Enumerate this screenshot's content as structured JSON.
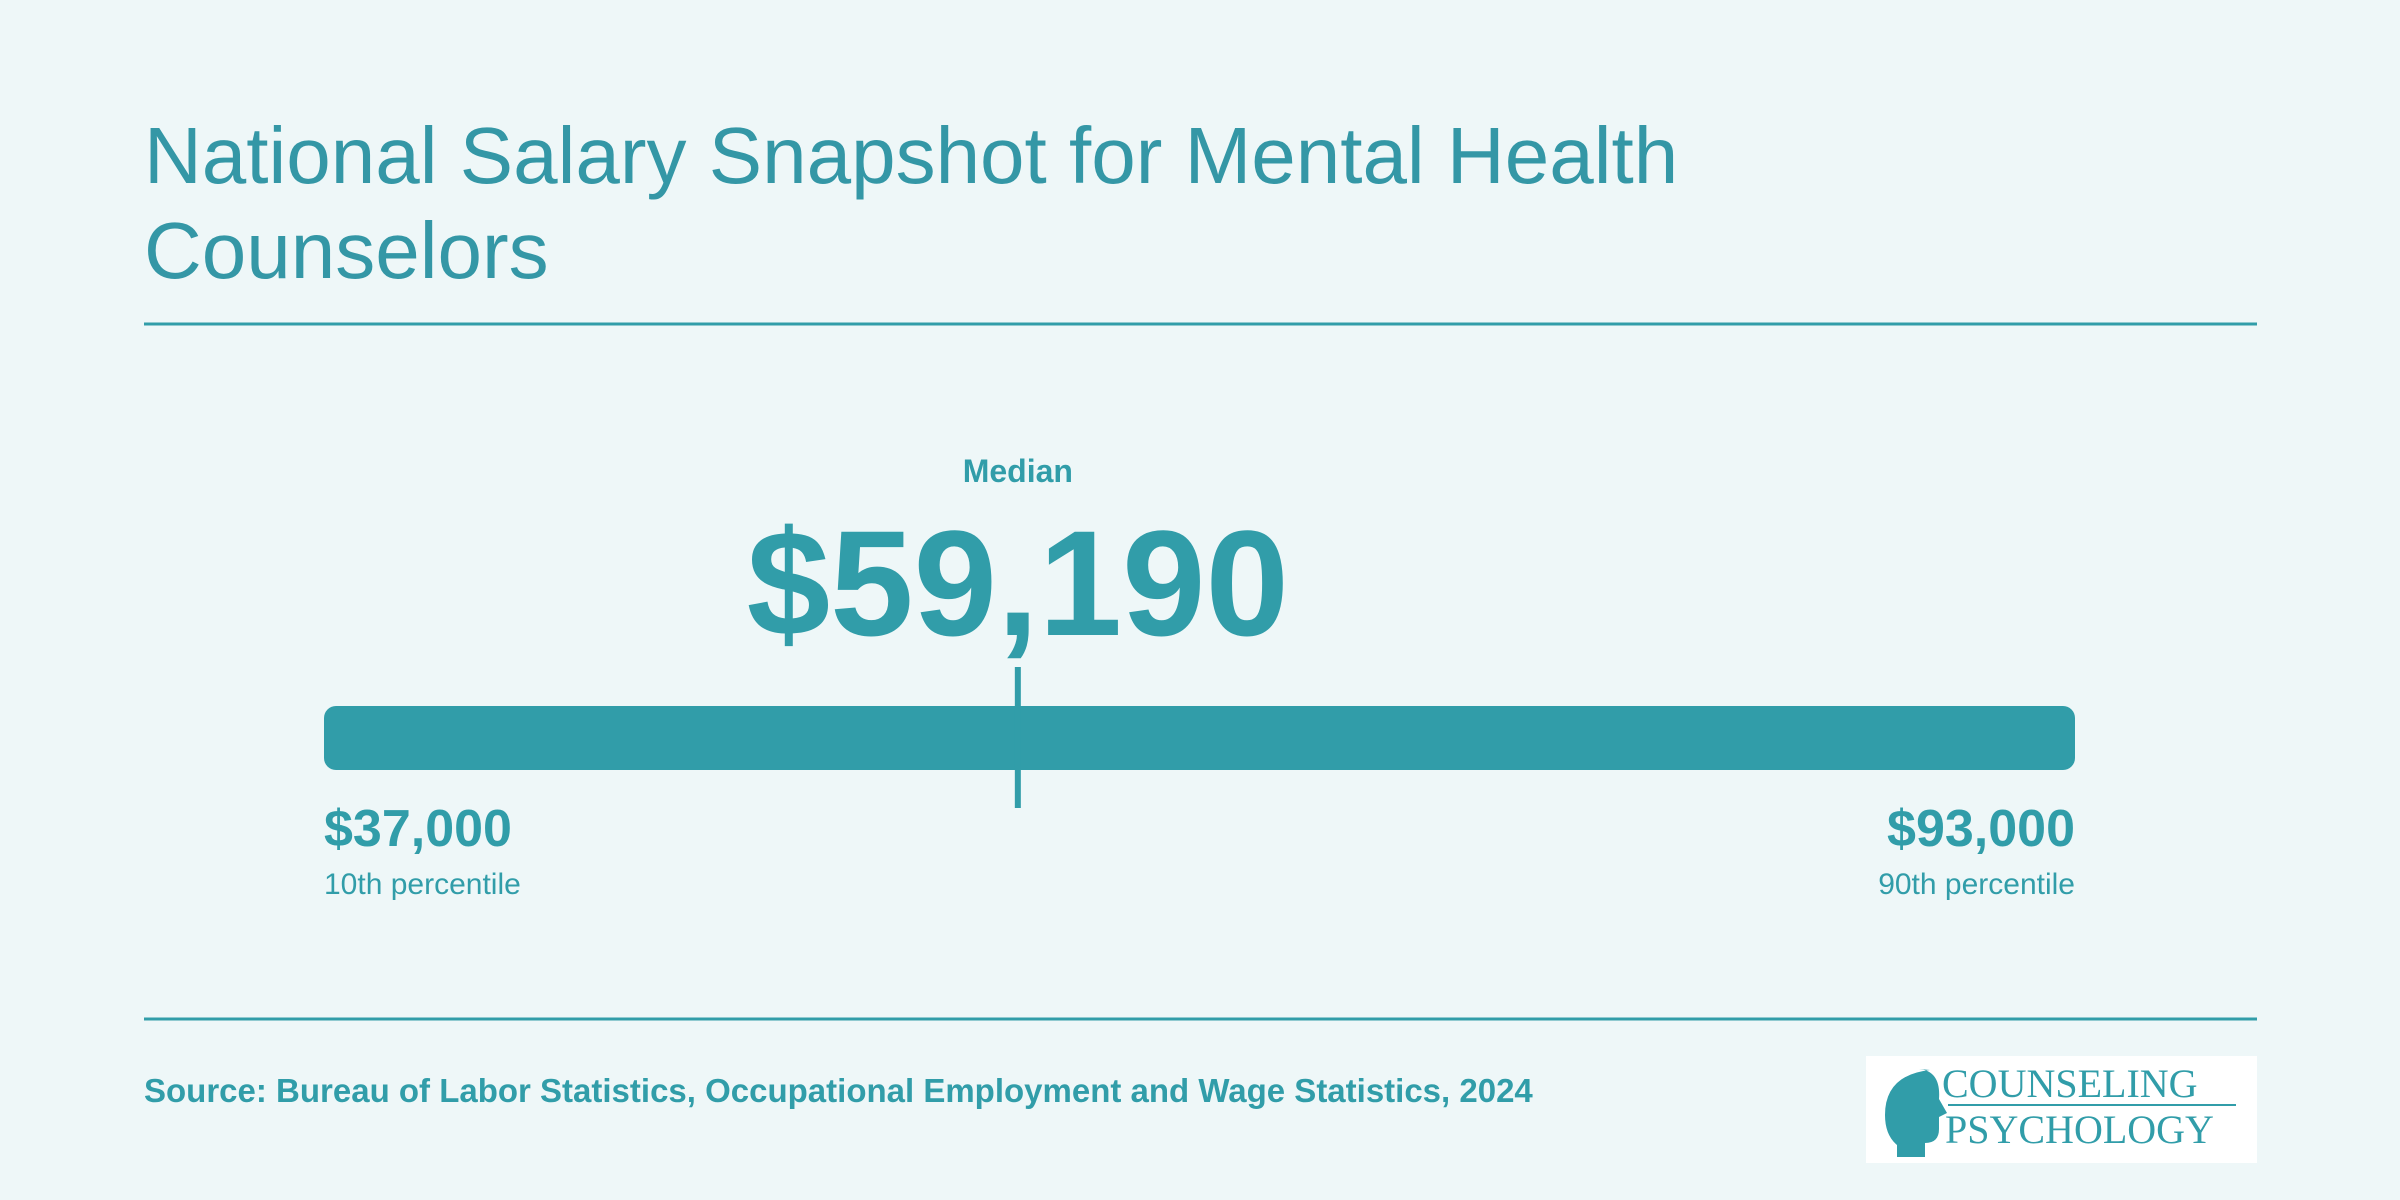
{
  "chart_data": {
    "type": "range",
    "title": "National Salary Snapshot for Mental Health Counselors",
    "categories": [
      "10th percentile",
      "Median",
      "90th percentile"
    ],
    "values": [
      37000,
      59190,
      93000
    ],
    "value_labels": [
      "$37,000",
      "$59,190",
      "$93,000"
    ],
    "xlim": [
      37000,
      93000
    ],
    "color": "#319da9",
    "source": "Source: Bureau of Labor Statistics, Occupational Employment and Wage Statistics, 2024"
  },
  "logo": {
    "line1": "COUNSELING",
    "line2": "PSYCHOLOGY"
  }
}
